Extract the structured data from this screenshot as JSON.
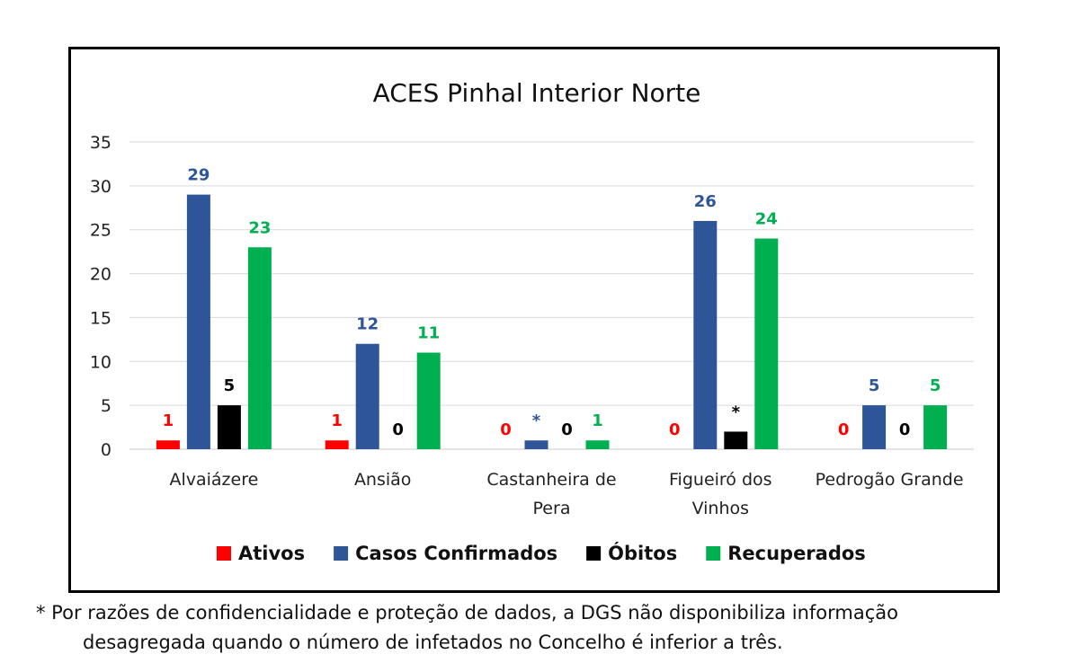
{
  "chart_data": {
    "type": "bar",
    "title": "ACES Pinhal Interior Norte",
    "categories": [
      "Alvaiázere",
      "Ansião",
      "Castanheira de Pera",
      "Figueiró dos Vinhos",
      "Pedrogão Grande"
    ],
    "category_lines": [
      [
        "Alvaiázere"
      ],
      [
        "Ansião"
      ],
      [
        "Castanheira de",
        "Pera"
      ],
      [
        "Figueiró dos",
        "Vinhos"
      ],
      [
        "Pedrogão Grande"
      ]
    ],
    "series": [
      {
        "name": "Ativos",
        "color": "#ff0000",
        "values": [
          1,
          1,
          0,
          0,
          0
        ],
        "labels": [
          "1",
          "1",
          "0",
          "0",
          "0"
        ]
      },
      {
        "name": "Casos Confirmados",
        "color": "#2e5597",
        "values": [
          29,
          12,
          1,
          26,
          5
        ],
        "labels": [
          "29",
          "12",
          "*",
          "26",
          "5"
        ]
      },
      {
        "name": "Óbitos",
        "color": "#000000",
        "values": [
          5,
          0,
          0,
          2,
          0
        ],
        "labels": [
          "5",
          "0",
          "0",
          "*",
          "0"
        ]
      },
      {
        "name": "Recuperados",
        "color": "#00b050",
        "values": [
          23,
          11,
          1,
          24,
          5
        ],
        "labels": [
          "23",
          "11",
          "1",
          "24",
          "5"
        ]
      }
    ],
    "ylim": [
      0,
      35
    ],
    "yticks": [
      0,
      5,
      10,
      15,
      20,
      25,
      30,
      35
    ],
    "grid": true,
    "legend_position": "bottom"
  },
  "footnote": {
    "line1": "* Por razões de confidencialidade e proteção de dados, a DGS não disponibiliza informação",
    "line2": "desagregada quando o número de infetados no Concelho é inferior a três."
  }
}
